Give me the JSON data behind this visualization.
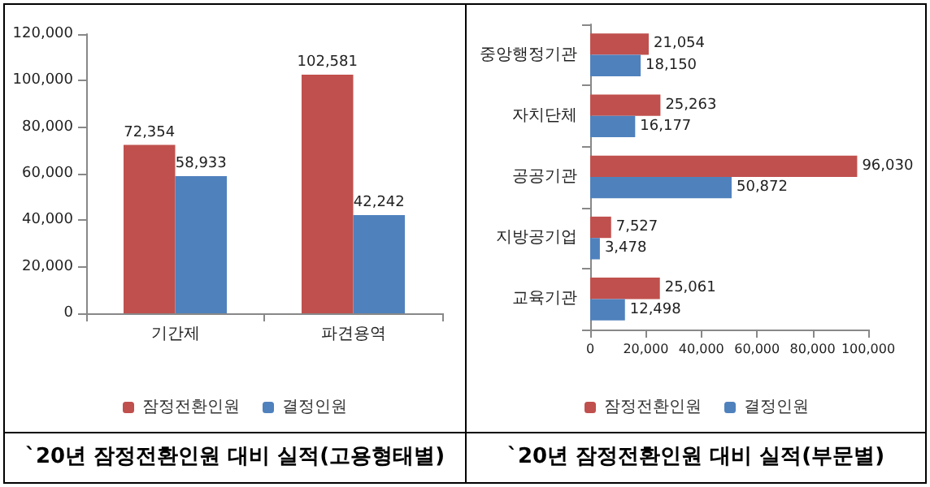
{
  "chart_data": [
    {
      "type": "bar",
      "title": "`20년 잠정전환인원 대비 실적(고용형태별)",
      "categories": [
        "기간제",
        "파견용역"
      ],
      "series": [
        {
          "name": "잠정전환인원",
          "color": "#c0504d",
          "values": [
            72354,
            102581
          ],
          "value_labels": [
            "72,354",
            "102,581"
          ]
        },
        {
          "name": "결정인원",
          "color": "#4f81bd",
          "values": [
            58933,
            42242
          ],
          "value_labels": [
            "58,933",
            "42,242"
          ]
        }
      ],
      "ylim": [
        0,
        120000
      ],
      "yticks": [
        {
          "value": 0,
          "label": "0"
        },
        {
          "value": 20000,
          "label": "20,000"
        },
        {
          "value": 40000,
          "label": "40,000"
        },
        {
          "value": 60000,
          "label": "60,000"
        },
        {
          "value": 80000,
          "label": "80,000"
        },
        {
          "value": 100000,
          "label": "100,000"
        },
        {
          "value": 120000,
          "label": "120,000"
        }
      ],
      "grid": false,
      "legend": "bottom"
    },
    {
      "type": "bar",
      "orientation": "horizontal",
      "title": "`20년 잠정전환인원 대비 실적(부문별)",
      "categories": [
        "중앙행정기관",
        "자치단체",
        "공공기관",
        "지방공기업",
        "교육기관"
      ],
      "series": [
        {
          "name": "잠정전환인원",
          "color": "#c0504d",
          "values": [
            21054,
            25263,
            96030,
            7527,
            25061
          ],
          "value_labels": [
            "21,054",
            "25,263",
            "96,030",
            "7,527",
            "25,061"
          ]
        },
        {
          "name": "결정인원",
          "color": "#4f81bd",
          "values": [
            18150,
            16177,
            50872,
            3478,
            12498
          ],
          "value_labels": [
            "18,150",
            "16,177",
            "50,872",
            "3,478",
            "12,498"
          ]
        }
      ],
      "xlim": [
        0,
        100000
      ],
      "xticks": [
        {
          "value": 0,
          "label": "0"
        },
        {
          "value": 20000,
          "label": "20,000"
        },
        {
          "value": 40000,
          "label": "40,000"
        },
        {
          "value": 60000,
          "label": "60,000"
        },
        {
          "value": 80000,
          "label": "80,000"
        },
        {
          "value": 100000,
          "label": "100,000"
        }
      ],
      "grid": false,
      "legend": "bottom"
    }
  ]
}
